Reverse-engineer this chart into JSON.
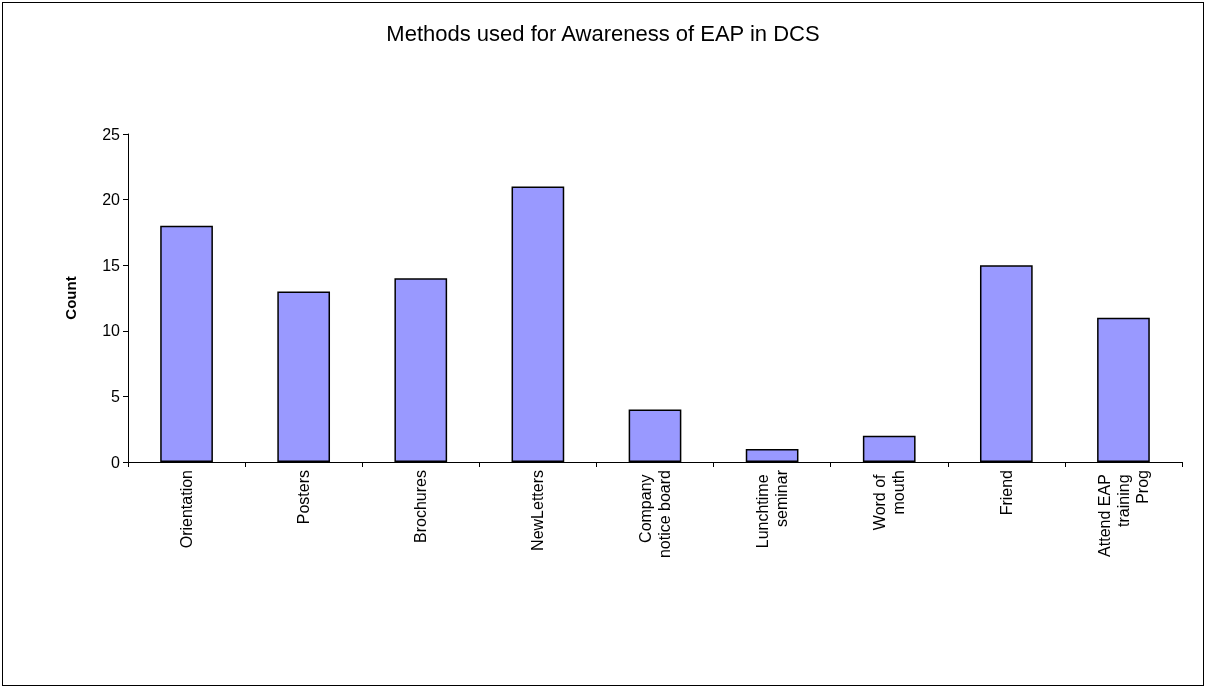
{
  "chart_data": {
    "type": "bar",
    "title": "Methods used for Awareness of EAP in DCS",
    "ylabel": "Count",
    "categories": [
      "Orientation",
      "Posters",
      "Brochures",
      "NewLetters",
      "Company notice board",
      "Lunchtime seminar",
      "Word of mouth",
      "Friend",
      "Attend EAP training Prog"
    ],
    "values": [
      18,
      13,
      14,
      21,
      4,
      1,
      2,
      15,
      11
    ],
    "color": "#9999ff",
    "ylim": [
      0,
      25
    ],
    "yticks": [
      0,
      5,
      10,
      15,
      20,
      25
    ],
    "grid": false
  }
}
